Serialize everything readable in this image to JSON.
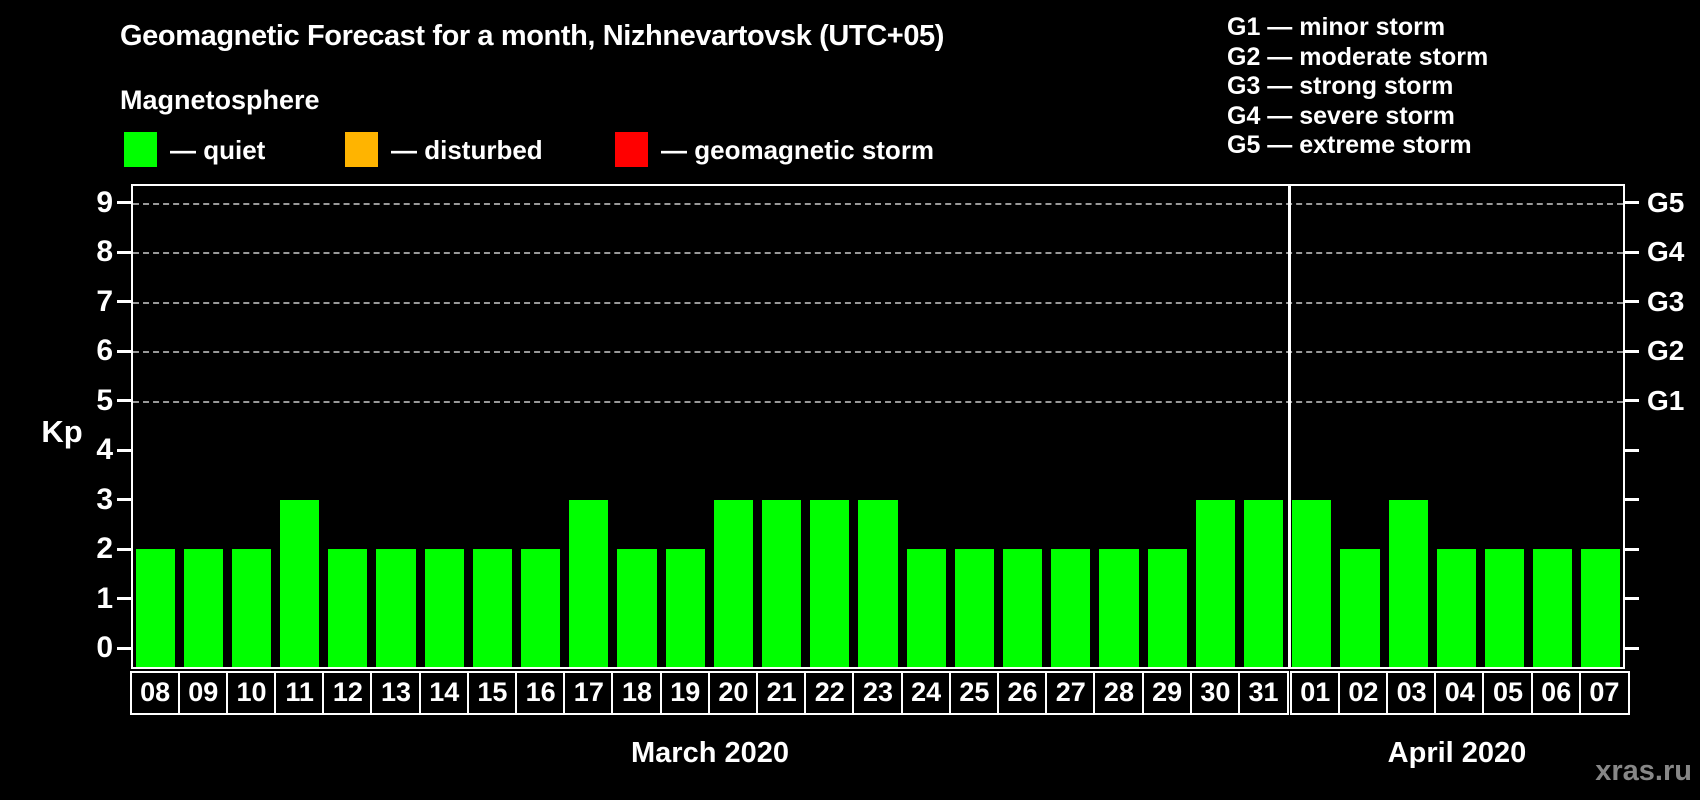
{
  "title": "Geomagnetic Forecast for a month, Nizhnevartovsk (UTC+05)",
  "subtitle": "Magnetosphere",
  "legend": {
    "items": [
      {
        "label": "— quiet",
        "color": "#00ff00"
      },
      {
        "label": "— disturbed",
        "color": "#ffb400"
      },
      {
        "label": "— geomagnetic storm",
        "color": "#ff0000"
      }
    ]
  },
  "g_legend": [
    "G1 — minor storm",
    "G2 — moderate storm",
    "G3 — strong storm",
    "G4 — severe storm",
    "G5 — extreme storm"
  ],
  "watermark": "xras.ru",
  "chart_data": {
    "type": "bar",
    "title": "Geomagnetic Forecast for a month, Nizhnevartovsk (UTC+05)",
    "ylabel": "Kp",
    "ylim": [
      0,
      9
    ],
    "y_ticks": [
      0,
      1,
      2,
      3,
      4,
      5,
      6,
      7,
      8,
      9
    ],
    "grid": "dashed horizontal lines at storm levels only",
    "legend_position": "top-left and top-right",
    "bar_color": "#00ff00",
    "bar_meaning": "quiet",
    "g_levels": [
      {
        "kp": 5,
        "label": "G1"
      },
      {
        "kp": 6,
        "label": "G2"
      },
      {
        "kp": 7,
        "label": "G3"
      },
      {
        "kp": 8,
        "label": "G4"
      },
      {
        "kp": 9,
        "label": "G5"
      }
    ],
    "months": [
      {
        "label": "March 2020",
        "days": [
          "08",
          "09",
          "10",
          "11",
          "12",
          "13",
          "14",
          "15",
          "16",
          "17",
          "18",
          "19",
          "20",
          "21",
          "22",
          "23",
          "24",
          "25",
          "26",
          "27",
          "28",
          "29",
          "30",
          "31"
        ],
        "values": [
          2,
          2,
          2,
          3,
          2,
          2,
          2,
          2,
          2,
          3,
          2,
          2,
          3,
          3,
          3,
          3,
          2,
          2,
          2,
          2,
          2,
          2,
          3,
          3
        ]
      },
      {
        "label": "April 2020",
        "days": [
          "01",
          "02",
          "03",
          "04",
          "05",
          "06",
          "07"
        ],
        "values": [
          3,
          2,
          3,
          2,
          2,
          2,
          2
        ]
      }
    ]
  }
}
